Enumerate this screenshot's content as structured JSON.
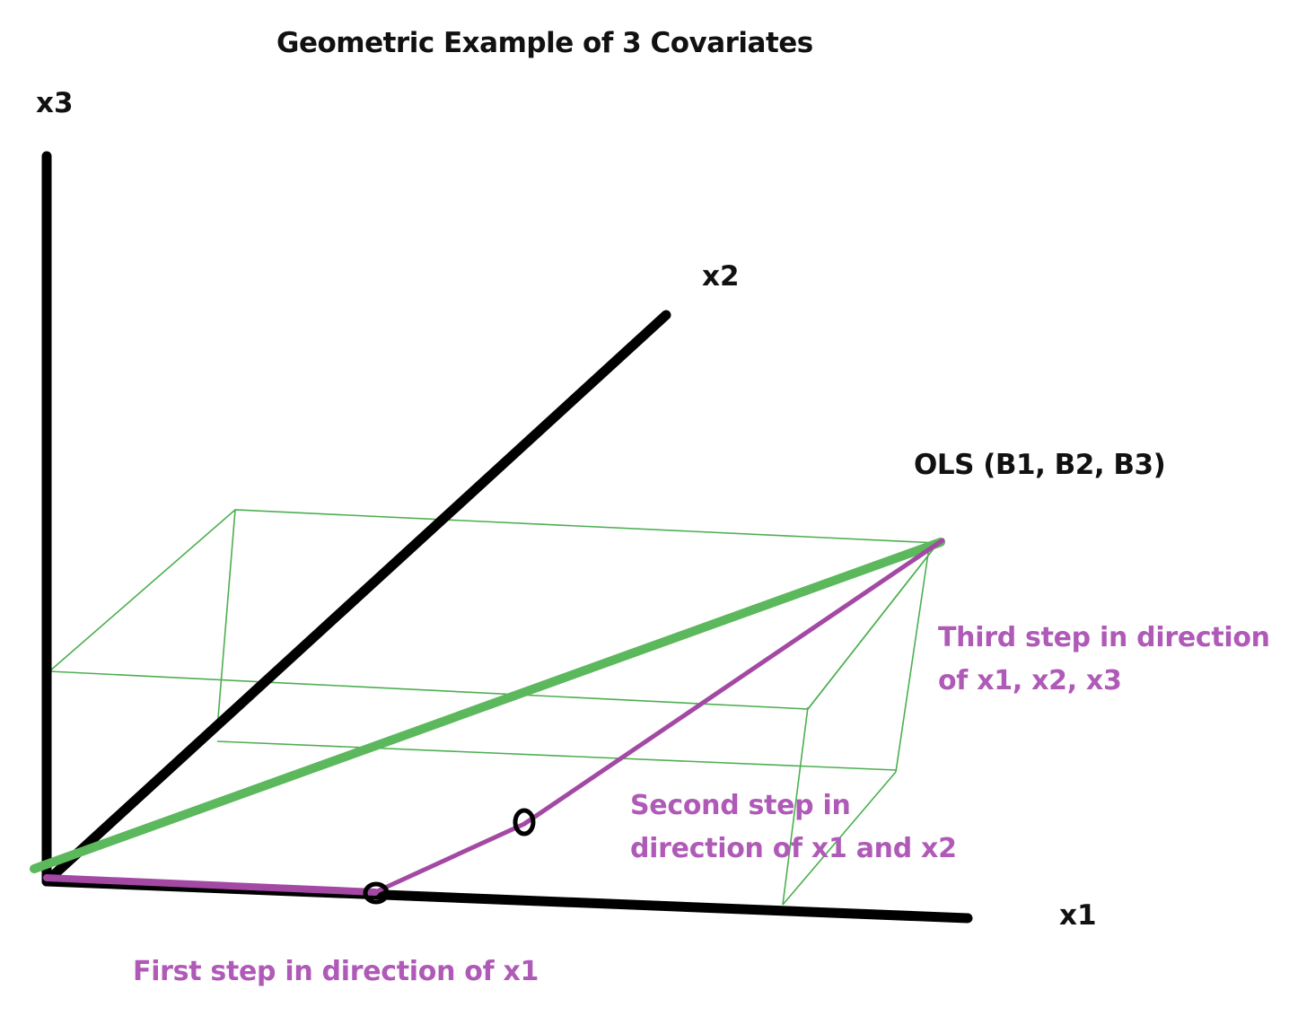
{
  "title": "Geometric Example of 3 Covariates",
  "axes": {
    "x1_label": "x1",
    "x2_label": "x2",
    "x3_label": "x3"
  },
  "ols_label": "OLS (B1, B2, B3)",
  "steps": {
    "first": "First step in direction of x1",
    "second_line1": "Second step in",
    "second_line2": "direction of x1 and x2",
    "third_line1": "Third step in direction",
    "third_line2": "of x1, x2, x3"
  },
  "colors": {
    "axis": "#000000",
    "ols_vector": "#5cb85c",
    "box_wireframe": "#4caf50",
    "step_path": "#a349a4",
    "step_text": "#b05ab8"
  }
}
